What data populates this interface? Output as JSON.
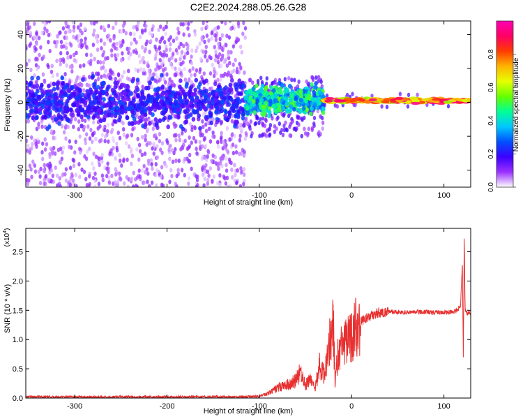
{
  "title": "C2E2.2024.288.05.26.G28",
  "chart_data": [
    {
      "type": "heatmap",
      "xlabel": "Height of straight line (km)",
      "ylabel": "Frequency (Hz)",
      "xlim": [
        -353,
        129
      ],
      "ylim": [
        -50,
        48
      ],
      "xticks": [
        -300,
        -200,
        -100,
        0,
        100
      ],
      "yticks": [
        -40,
        -20,
        0,
        20,
        40
      ],
      "colorbar": {
        "label": "Normalized spectral amplitude",
        "range": [
          0,
          1
        ],
        "ticks": [
          "0.0",
          "0.2",
          "0.4",
          "0.6",
          "0.8"
        ],
        "colors": [
          "#ffffff",
          "#9b30ff",
          "#3c00ff",
          "#0050ff",
          "#00c8ff",
          "#00ff96",
          "#64ff00",
          "#e6ff00",
          "#ffb400",
          "#ff3c00",
          "#ff0064",
          "#ff00b4"
        ]
      },
      "regions": [
        {
          "x": [
            -353,
            -115
          ],
          "freq_spread": [
            -50,
            48
          ],
          "core_band": [
            -10,
            10
          ],
          "amplitude": 0.25
        },
        {
          "x": [
            -115,
            -30
          ],
          "freq_spread": [
            -20,
            15
          ],
          "core_band": [
            -5,
            8
          ],
          "amplitude": 0.5
        },
        {
          "x": [
            -30,
            129
          ],
          "freq_spread": [
            -3,
            5
          ],
          "core_band": [
            0,
            2
          ],
          "amplitude": 0.95
        }
      ],
      "grid": false
    },
    {
      "type": "line",
      "xlabel": "Height of straight line (km)",
      "ylabel": "SNR (10 * v/v)",
      "y_multiplier": "(x10^4)",
      "y_multiplier_base": "(x10",
      "y_multiplier_exp": "4",
      "y_multiplier_close": ")",
      "xlim": [
        -353,
        129
      ],
      "ylim": [
        0,
        2.9
      ],
      "xticks": [
        -300,
        -200,
        -100,
        0,
        100
      ],
      "yticks": [
        "0.0",
        "0.5",
        "1.0",
        "1.5",
        "2.0",
        "2.5"
      ],
      "series_color": "#e83030",
      "x": [
        -353,
        -300,
        -200,
        -120,
        -100,
        -90,
        -80,
        -70,
        -60,
        -55,
        -50,
        -45,
        -40,
        -35,
        -30,
        -25,
        -20,
        -18,
        -15,
        -10,
        -5,
        0,
        5,
        10,
        15,
        20,
        25,
        30,
        35,
        40,
        50,
        60,
        70,
        80,
        90,
        100,
        110,
        115,
        118,
        120,
        121,
        122,
        123,
        125,
        129
      ],
      "y": [
        0.02,
        0.02,
        0.02,
        0.02,
        0.03,
        0.08,
        0.18,
        0.22,
        0.3,
        0.45,
        0.2,
        0.35,
        0.15,
        0.55,
        0.4,
        0.85,
        1.3,
        0.3,
        0.7,
        0.9,
        0.95,
        1.05,
        1.2,
        1.3,
        1.35,
        1.4,
        1.43,
        1.46,
        1.47,
        1.47,
        1.47,
        1.46,
        1.47,
        1.47,
        1.46,
        1.47,
        1.47,
        1.5,
        1.6,
        2.3,
        0.7,
        2.75,
        1.5,
        1.45,
        1.45
      ],
      "grid": false
    }
  ]
}
